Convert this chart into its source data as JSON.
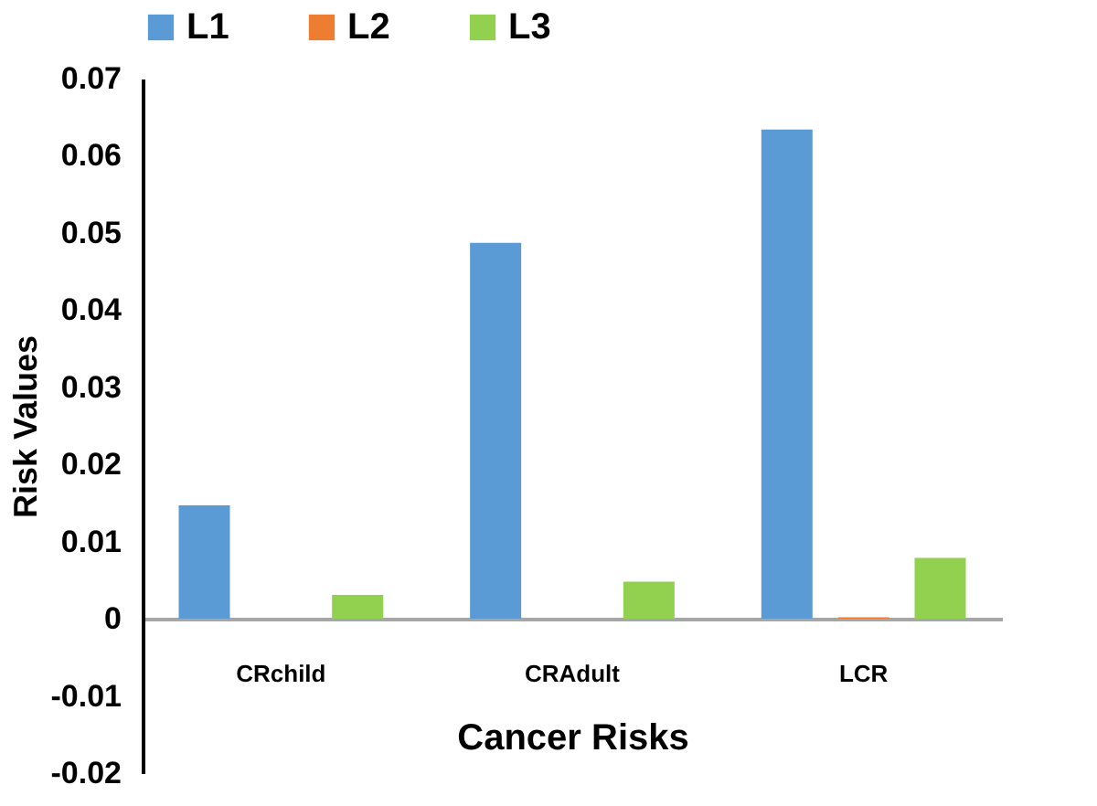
{
  "chart_data": {
    "type": "bar",
    "xlabel": "Cancer Risks",
    "ylabel": "Risk Values",
    "categories": [
      "CRchild",
      "CRAdult",
      "LCR"
    ],
    "series": [
      {
        "name": "L1",
        "color": "#5b9bd5",
        "values": [
          0.0147,
          0.0487,
          0.0634
        ]
      },
      {
        "name": "L2",
        "color": "#ed7d31",
        "values": [
          0,
          0,
          0.0002
        ]
      },
      {
        "name": "L3",
        "color": "#92d050",
        "values": [
          0.0031,
          0.0048,
          0.0079
        ]
      }
    ],
    "ylim": [
      -0.02,
      0.07
    ],
    "yticks": [
      -0.02,
      -0.01,
      0,
      0.01,
      0.02,
      0.03,
      0.04,
      0.05,
      0.06,
      0.07
    ],
    "grid": false,
    "legend": "top"
  }
}
